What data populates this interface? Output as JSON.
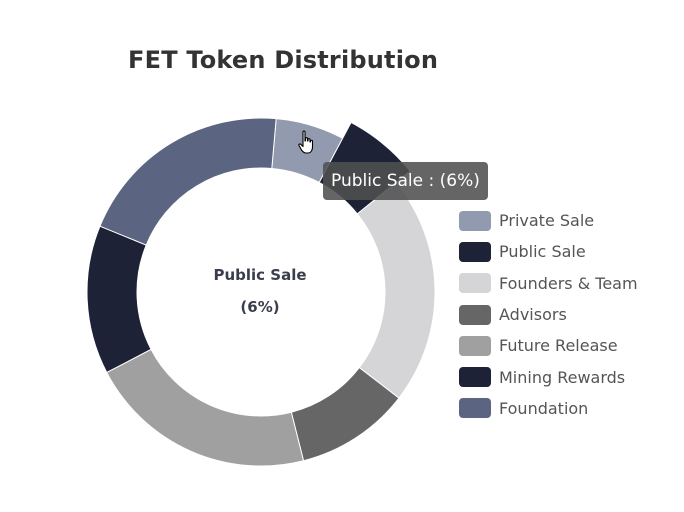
{
  "chart_data": {
    "type": "pie",
    "title": "FET Token Distribution",
    "labels": [
      "Private Sale",
      "Public Sale",
      "Founders & Team",
      "Advisors",
      "Future Release",
      "Mining Rewards",
      "Foundation"
    ],
    "colors": [
      "#919aae",
      "#1d2236",
      "#d5d5d8",
      "#666666",
      "#a0a0a0",
      "#1d2236",
      "#5b6480"
    ],
    "values": [
      6,
      6,
      20,
      10,
      20,
      13,
      19
    ],
    "highlighted": "Public Sale",
    "center_label": {
      "name": "Public Sale",
      "value": "(6%)"
    },
    "tooltip": "Public Sale : (6%)",
    "legend_position": "right"
  }
}
